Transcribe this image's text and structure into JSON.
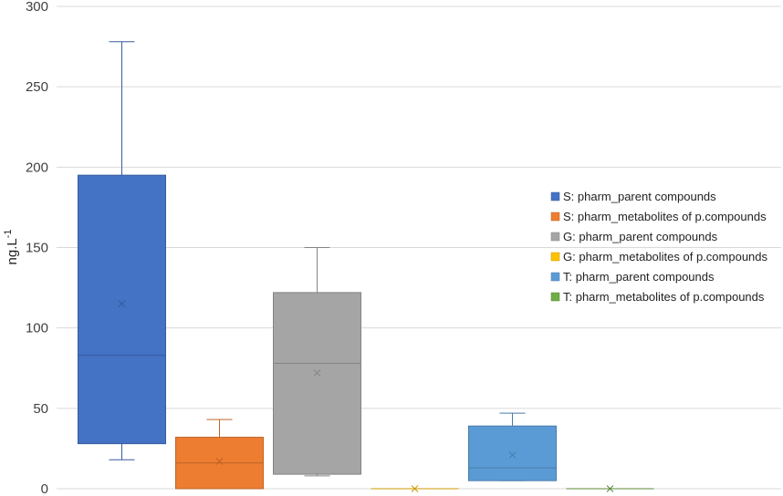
{
  "chart_data": {
    "type": "box",
    "title": "",
    "ylabel": {
      "main": "ng.L",
      "sup": "-1"
    },
    "ylim": [
      0,
      300
    ],
    "yticks": [
      0,
      50,
      100,
      150,
      200,
      250,
      300
    ],
    "grid": true,
    "legend_position": "right",
    "series": [
      {
        "name": "S: pharm_parent compounds",
        "color": "#4472c4",
        "min": 18,
        "q1": 28,
        "median": 83,
        "q3": 195,
        "max": 278,
        "mean": 115
      },
      {
        "name": "S: pharm_metabolites of p.compounds",
        "color": "#ed7d31",
        "min": 0,
        "q1": 0,
        "median": 16,
        "q3": 32,
        "max": 43,
        "mean": 17
      },
      {
        "name": "G: pharm_parent compounds",
        "color": "#a5a5a5",
        "min": 8,
        "q1": 9,
        "median": 78,
        "q3": 122,
        "max": 150,
        "mean": 72
      },
      {
        "name": "G: pharm_metabolites of p.compounds",
        "color": "#ffc000",
        "min": 0,
        "q1": 0,
        "median": 0,
        "q3": 0,
        "max": 0,
        "mean": 0
      },
      {
        "name": "T: pharm_parent compounds",
        "color": "#5b9bd5",
        "min": 5,
        "q1": 5,
        "median": 13,
        "q3": 39,
        "max": 47,
        "mean": 21
      },
      {
        "name": "T: pharm_metabolites of p.compounds",
        "color": "#70ad47",
        "min": 0,
        "q1": 0,
        "median": 0,
        "q3": 0,
        "max": 0,
        "mean": 0
      }
    ]
  }
}
